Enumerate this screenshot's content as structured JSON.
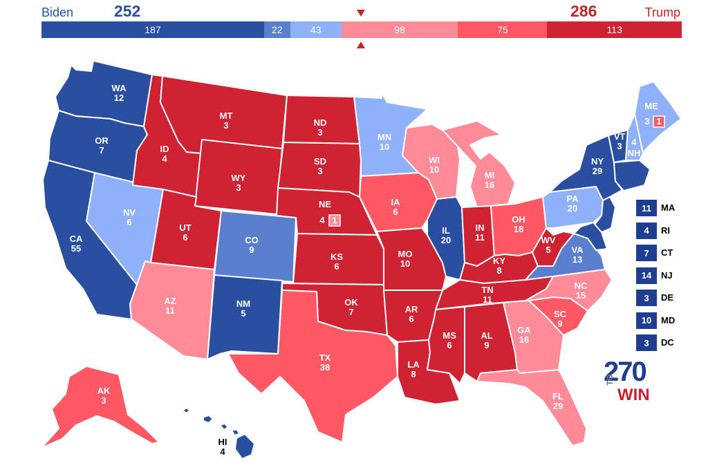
{
  "header": {
    "biden_label": "Biden",
    "biden_total": "252",
    "trump_label": "Trump",
    "trump_total": "286"
  },
  "bar": [
    {
      "value": 187,
      "label": "187",
      "color": "#2a4fa0"
    },
    {
      "value": 22,
      "label": "22",
      "color": "#5b7fcf"
    },
    {
      "value": 43,
      "label": "43",
      "color": "#8fb1fa"
    },
    {
      "value": 98,
      "label": "98",
      "color": "#ff8b98"
    },
    {
      "value": 75,
      "label": "75",
      "color": "#ff5865"
    },
    {
      "value": 113,
      "label": "113",
      "color": "#cf2233"
    }
  ],
  "colors": {
    "safe_dem": "#2a4fa0",
    "likely_dem": "#5b7fcf",
    "lean_dem": "#8fb1fa",
    "lean_rep": "#ff8b98",
    "likely_rep": "#ff5865",
    "safe_rep": "#cf2233"
  },
  "states": {
    "WA": {
      "ev": "12"
    },
    "OR": {
      "ev": "7"
    },
    "CA": {
      "ev": "55"
    },
    "NV": {
      "ev": "6"
    },
    "ID": {
      "ev": "4"
    },
    "MT": {
      "ev": "3"
    },
    "WY": {
      "ev": "3"
    },
    "UT": {
      "ev": "6"
    },
    "AZ": {
      "ev": "11"
    },
    "CO": {
      "ev": "9"
    },
    "NM": {
      "ev": "5"
    },
    "ND": {
      "ev": "3"
    },
    "SD": {
      "ev": "3"
    },
    "NE": {
      "ev": "4",
      "district": "1"
    },
    "KS": {
      "ev": "6"
    },
    "OK": {
      "ev": "7"
    },
    "TX": {
      "ev": "38"
    },
    "MN": {
      "ev": "10"
    },
    "IA": {
      "ev": "6"
    },
    "MO": {
      "ev": "10"
    },
    "AR": {
      "ev": "6"
    },
    "LA": {
      "ev": "8"
    },
    "WI": {
      "ev": "10"
    },
    "IL": {
      "ev": "20"
    },
    "MI": {
      "ev": "16"
    },
    "IN": {
      "ev": "11"
    },
    "OH": {
      "ev": "18"
    },
    "KY": {
      "ev": "8"
    },
    "TN": {
      "ev": "11"
    },
    "MS": {
      "ev": "6"
    },
    "AL": {
      "ev": "9"
    },
    "GA": {
      "ev": "16"
    },
    "FL": {
      "ev": "29"
    },
    "SC": {
      "ev": "9"
    },
    "NC": {
      "ev": "15"
    },
    "VA": {
      "ev": "13"
    },
    "WV": {
      "ev": "5"
    },
    "PA": {
      "ev": "20"
    },
    "NY": {
      "ev": "29"
    },
    "VT": {
      "ev": "3"
    },
    "NH": {
      "ev": "4"
    },
    "ME": {
      "ev": "3",
      "district": "1"
    },
    "AK": {
      "ev": "3"
    },
    "HI": {
      "ev": "4"
    }
  },
  "small_states": [
    {
      "abbr": "MA",
      "ev": "11"
    },
    {
      "abbr": "RI",
      "ev": "4"
    },
    {
      "abbr": "CT",
      "ev": "7"
    },
    {
      "abbr": "NJ",
      "ev": "14"
    },
    {
      "abbr": "DE",
      "ev": "3"
    },
    {
      "abbr": "MD",
      "ev": "10"
    },
    {
      "abbr": "DC",
      "ev": "3"
    }
  ],
  "logo": {
    "num": "270",
    "to": "TO",
    "win": "WIN"
  }
}
